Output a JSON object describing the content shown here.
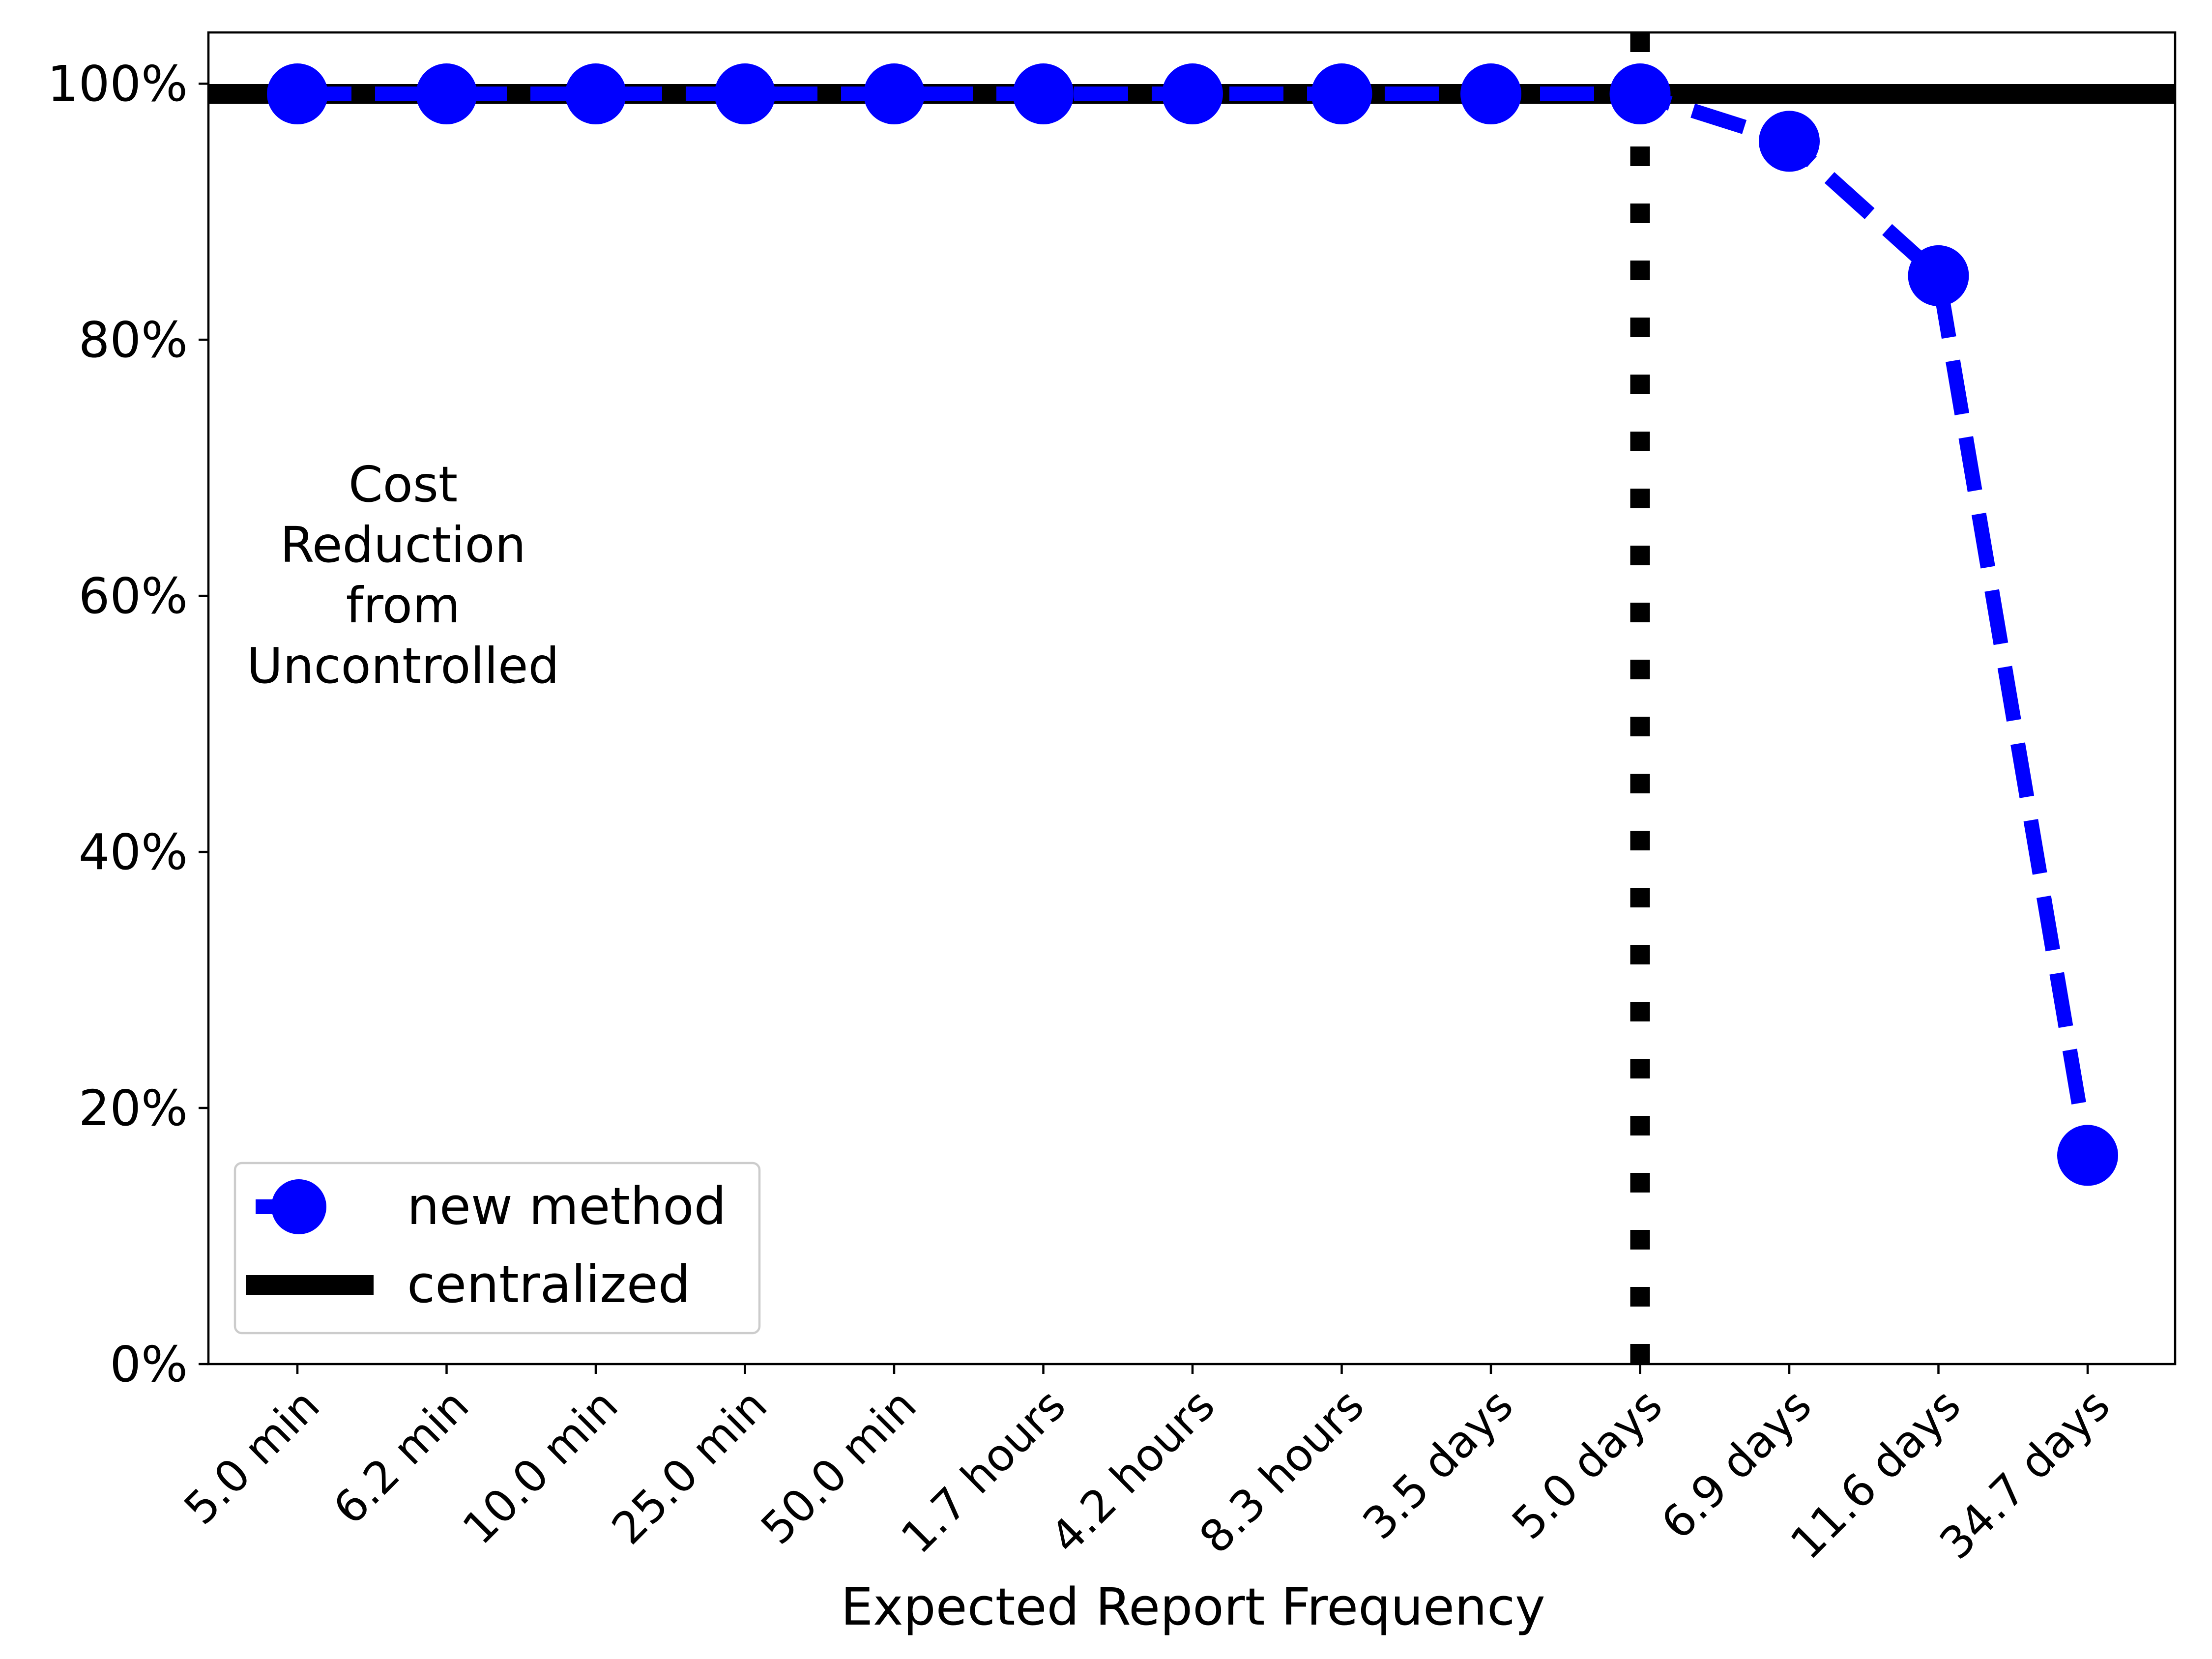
{
  "chart_data": {
    "type": "line",
    "title": "",
    "xlabel": "Expected Report Frequency",
    "ylabel": "",
    "categories": [
      "5.0 min",
      "6.2 min",
      "10.0 min",
      "25.0 min",
      "50.0 min",
      "1.7 hours",
      "4.2 hours",
      "8.3 hours",
      "3.5 days",
      "5.0 days",
      "6.9 days",
      "11.6 days",
      "34.7 days"
    ],
    "yticks": [
      "0%",
      "20%",
      "40%",
      "60%",
      "80%",
      "100%"
    ],
    "ylim": [
      0,
      104
    ],
    "series": [
      {
        "name": "new method",
        "values": [
          99.2,
          99.2,
          99.2,
          99.2,
          99.2,
          99.2,
          99.2,
          99.2,
          99.2,
          99.2,
          95.5,
          85.0,
          16.3
        ],
        "color": "#0000ff",
        "line_style": "dashed",
        "marker": "circle"
      },
      {
        "name": "centralized",
        "values": [
          99.2,
          99.2,
          99.2,
          99.2,
          99.2,
          99.2,
          99.2,
          99.2,
          99.2,
          99.2,
          99.2,
          99.2,
          99.2
        ],
        "color": "#000000",
        "line_style": "solid",
        "marker": "none"
      }
    ],
    "reference_line": {
      "orientation": "vertical",
      "at_category": "5.0 days",
      "style": "dotted",
      "color": "#000000"
    },
    "annotation": {
      "lines": [
        "Cost",
        "Reduction",
        "from",
        "Uncontrolled"
      ]
    },
    "legend": {
      "position": "lower-left",
      "entries": [
        "new method",
        "centralized"
      ]
    },
    "grid": false
  }
}
